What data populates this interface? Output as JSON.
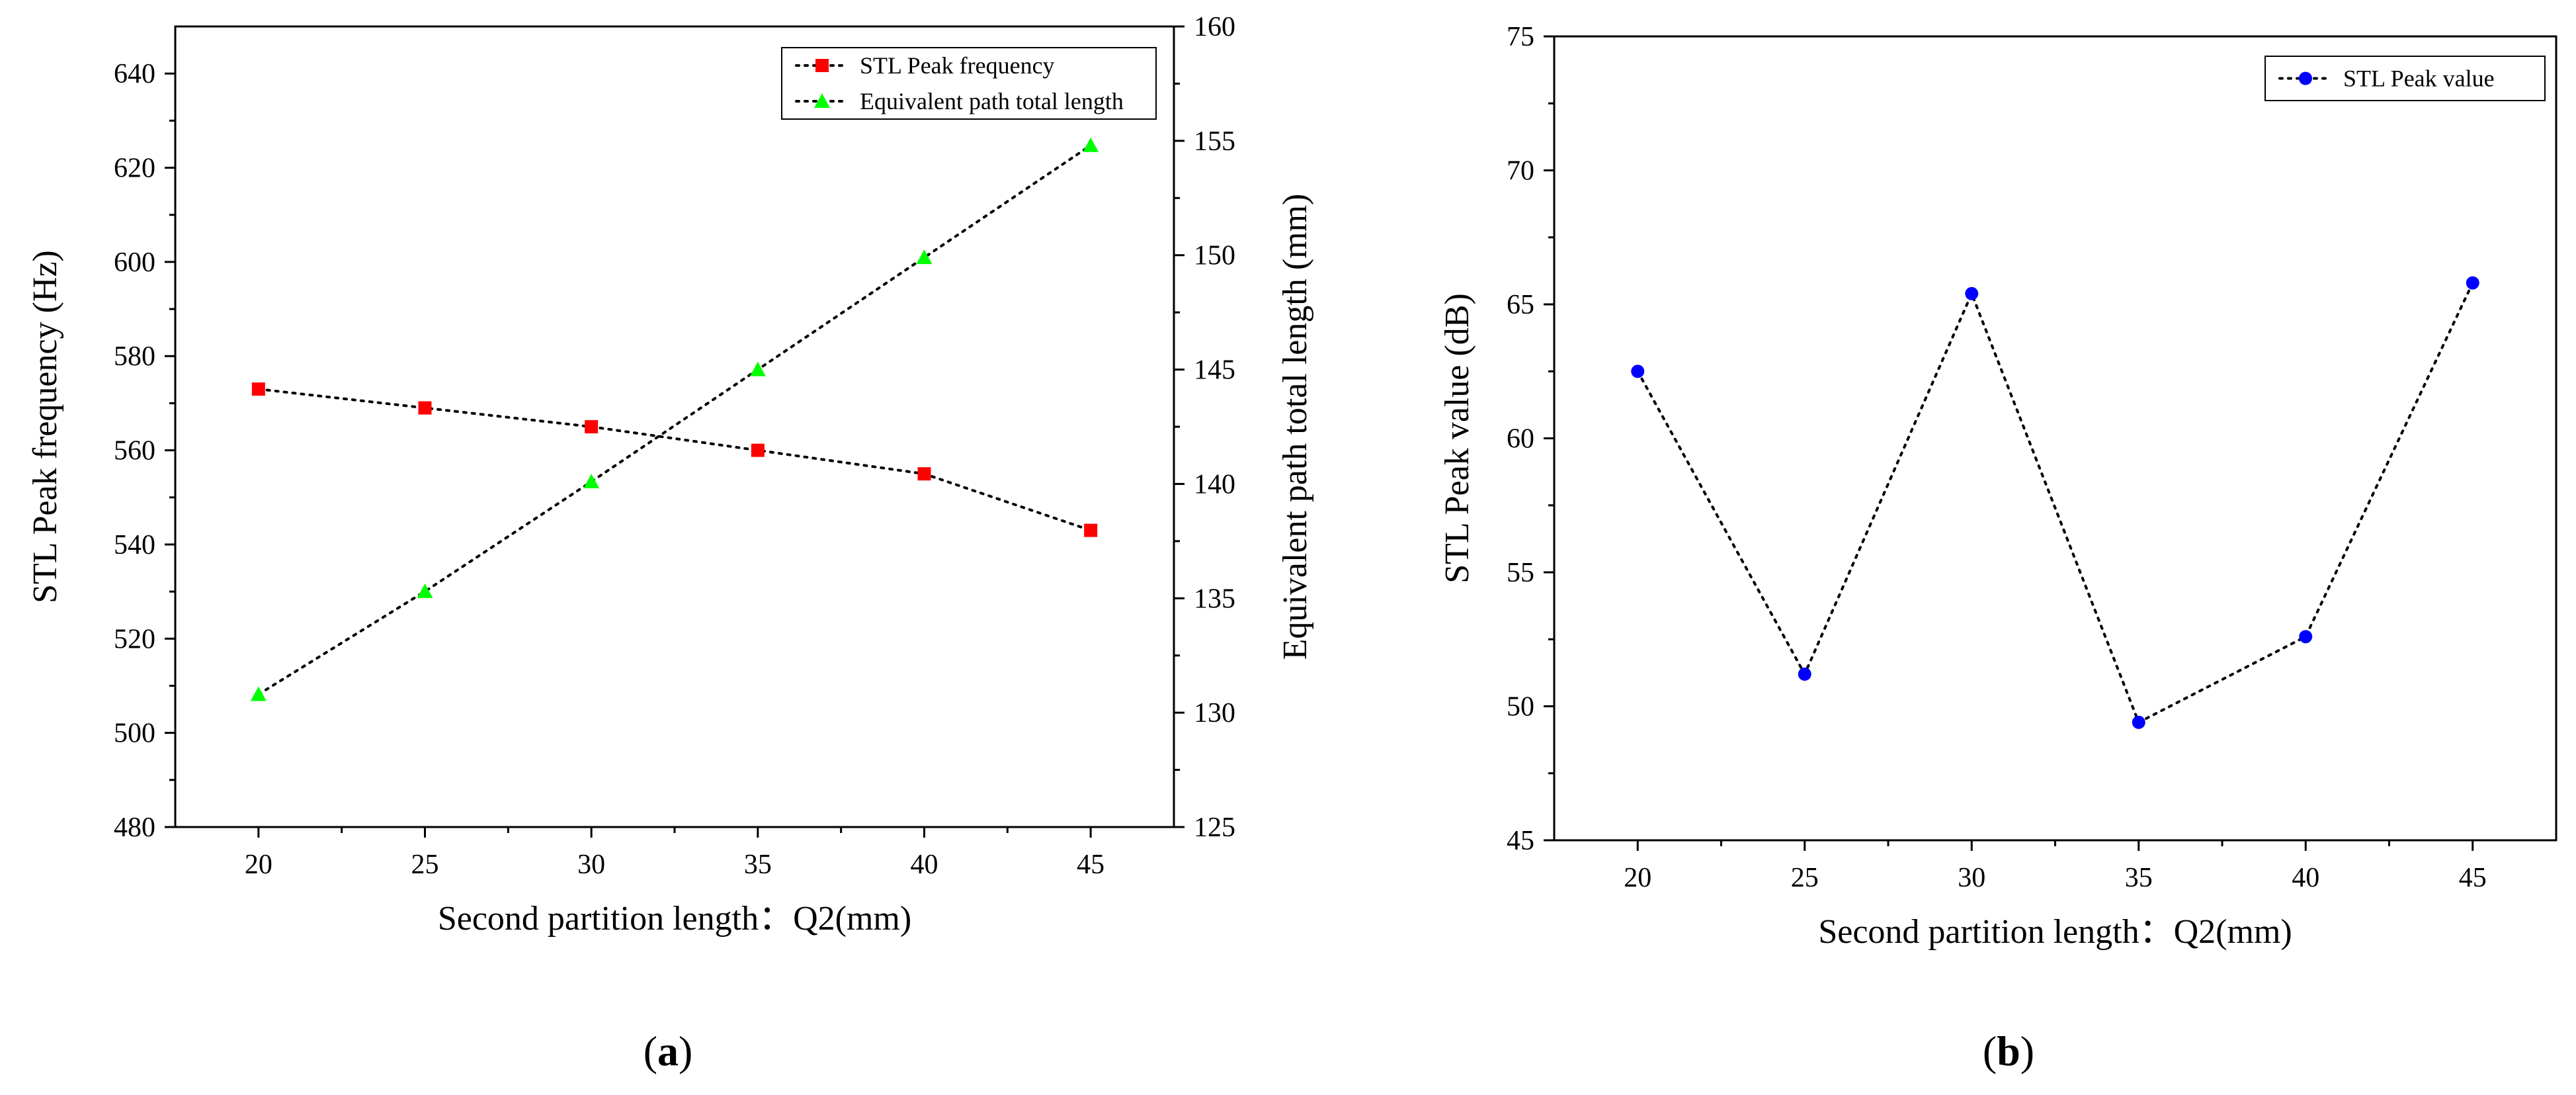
{
  "chart_data": [
    {
      "type": "line",
      "panel_label": "a",
      "xlabel": "Second partition length：Q2(mm)",
      "ylabel": "STL Peak frequency (Hz)",
      "ylabel_right": "Equivalent path total length (mm)",
      "x": [
        20,
        25,
        30,
        35,
        40,
        45
      ],
      "xticks": [
        "20",
        "25",
        "30",
        "35",
        "40",
        "45"
      ],
      "xlim": [
        17.5,
        47.5
      ],
      "ylim": [
        480,
        650
      ],
      "yticks": [
        "480",
        "500",
        "520",
        "540",
        "560",
        "580",
        "600",
        "620",
        "640"
      ],
      "ylim_right": [
        125,
        160
      ],
      "yticks_right": [
        "125",
        "130",
        "135",
        "140",
        "145",
        "150",
        "155",
        "160"
      ],
      "series": [
        {
          "name": "STL Peak frequency",
          "axis": "left",
          "marker": "square",
          "color": "#ff0000",
          "values": [
            573,
            569,
            565,
            560,
            555,
            543
          ]
        },
        {
          "name": "Equivalent path total length",
          "axis": "right",
          "marker": "triangle",
          "color": "#00ff00",
          "values": [
            130.8,
            135.3,
            140.1,
            145.0,
            149.9,
            154.8
          ]
        }
      ],
      "legend_position": "top-right"
    },
    {
      "type": "line",
      "panel_label": "b",
      "xlabel": "Second partition length：Q2(mm)",
      "ylabel": "STL Peak value (dB)",
      "x": [
        20,
        25,
        30,
        35,
        40,
        45
      ],
      "xticks": [
        "20",
        "25",
        "30",
        "35",
        "40",
        "45"
      ],
      "xlim": [
        17.5,
        47.5
      ],
      "ylim": [
        45,
        75
      ],
      "yticks": [
        "45",
        "50",
        "55",
        "60",
        "65",
        "70",
        "75"
      ],
      "series": [
        {
          "name": "STL Peak value",
          "axis": "left",
          "marker": "circle",
          "color": "#0000ff",
          "values": [
            62.5,
            51.2,
            65.4,
            49.4,
            52.6,
            65.8
          ]
        }
      ],
      "legend_position": "top-right"
    }
  ]
}
